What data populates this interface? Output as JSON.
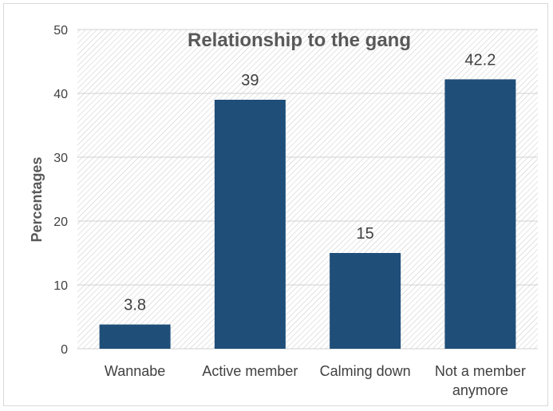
{
  "chart_data": {
    "type": "bar",
    "title": "Relationship to the gang",
    "xlabel": "",
    "ylabel": "Percentages",
    "categories": [
      [
        "Wannabe"
      ],
      [
        "Active member"
      ],
      [
        "Calming down"
      ],
      [
        "Not a member",
        "anymore"
      ]
    ],
    "values": [
      3.8,
      39,
      15,
      42.2
    ],
    "data_labels": [
      "3.8",
      "39",
      "15",
      "42.2"
    ],
    "ylim": [
      0,
      50
    ],
    "yticks": [
      0,
      10,
      20,
      30,
      40,
      50
    ],
    "grid": true,
    "legend": "none",
    "colors": {
      "bar": "#1f4e79",
      "plot_hatch": "#c8c8c8",
      "gridline": "#d0d0d0",
      "text": "#404040"
    }
  }
}
